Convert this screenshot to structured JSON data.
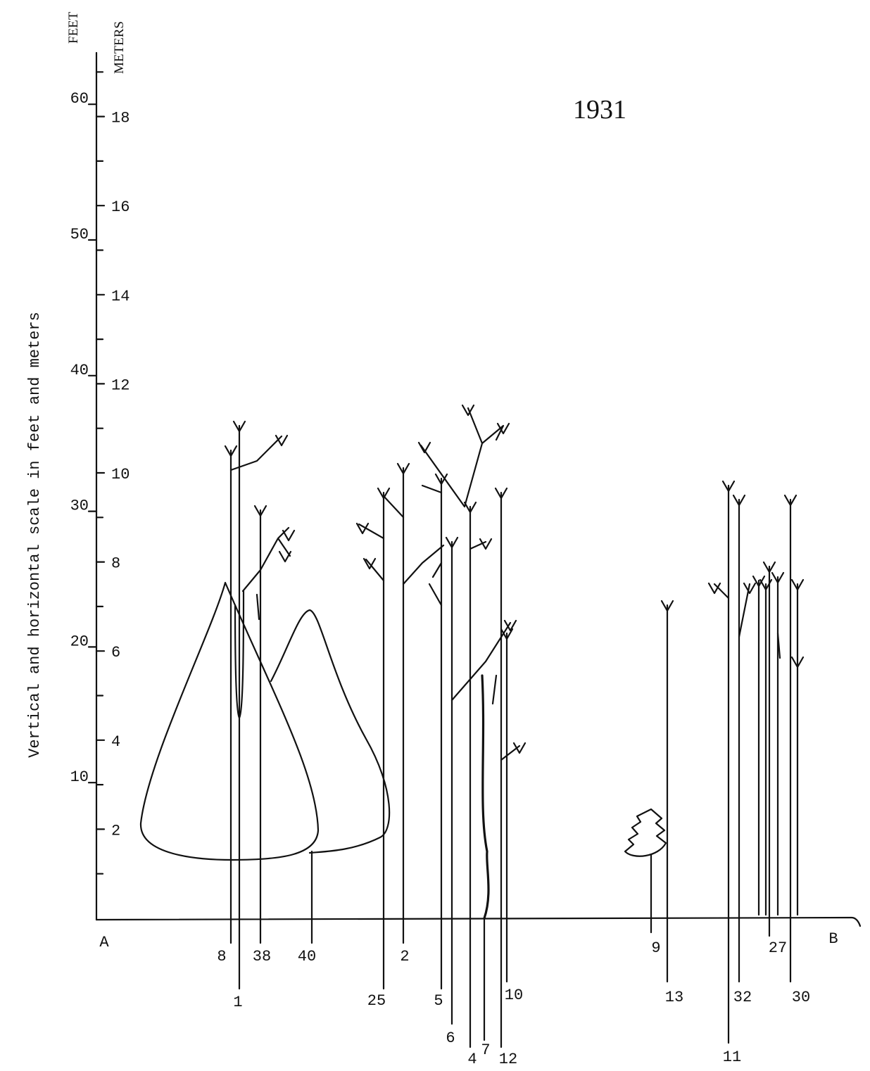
{
  "title": "1931",
  "side_label": "Vertical and horizontal scale in feet and meters",
  "feet_axis": {
    "label": "FEET",
    "ticks": [
      10,
      20,
      30,
      40,
      50,
      60
    ]
  },
  "meters_axis": {
    "label": "METERS",
    "ticks": [
      2,
      4,
      6,
      8,
      10,
      12,
      14,
      16,
      18
    ],
    "minor_ticks": [
      1,
      3,
      5,
      7,
      9,
      11,
      13,
      15,
      17,
      19
    ]
  },
  "endpoints": {
    "start": "A",
    "end": "B"
  },
  "trees": [
    "8",
    "1",
    "38",
    "40",
    "25",
    "2",
    "5",
    "6",
    "4",
    "7",
    "12",
    "10",
    "9",
    "13",
    "11",
    "32",
    "27",
    "30"
  ]
}
